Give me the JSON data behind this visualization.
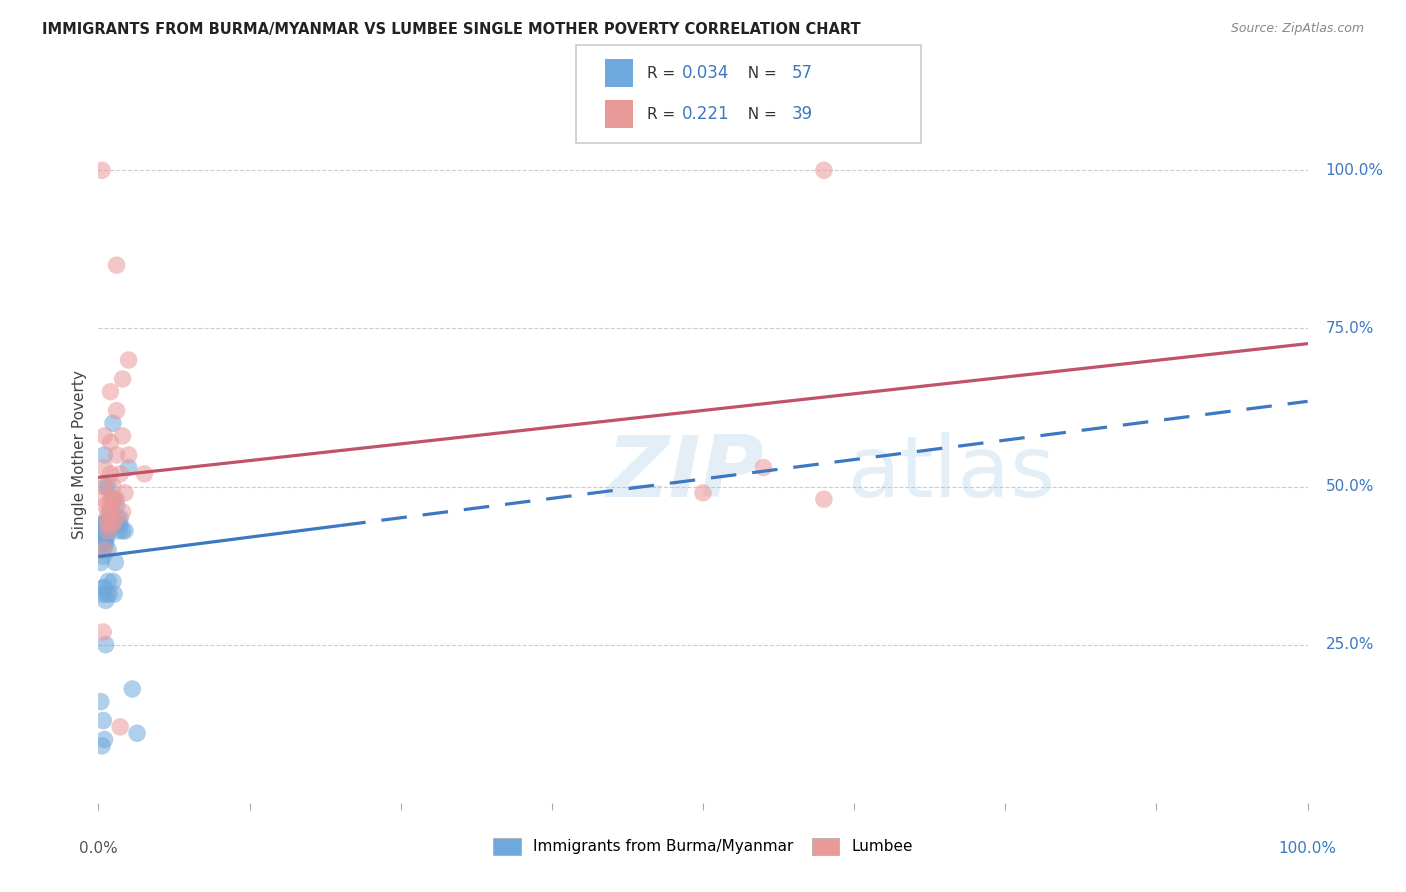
{
  "title": "IMMIGRANTS FROM BURMA/MYANMAR VS LUMBEE SINGLE MOTHER POVERTY CORRELATION CHART",
  "source": "Source: ZipAtlas.com",
  "ylabel": "Single Mother Poverty",
  "r_blue": 0.034,
  "n_blue": 57,
  "r_pink": 0.221,
  "n_pink": 39,
  "legend_label_blue": "Immigrants from Burma/Myanmar",
  "legend_label_pink": "Lumbee",
  "blue_color": "#6fa8dc",
  "pink_color": "#ea9999",
  "trend_blue_color": "#3d78c2",
  "trend_pink_color": "#c0526a",
  "grid_color": "#cccccc",
  "blue_x": [
    0.5,
    1.2,
    1.8,
    0.3,
    0.7,
    1.0,
    1.5,
    2.0,
    0.8,
    1.3,
    0.2,
    0.4,
    0.6,
    0.9,
    1.1,
    1.4,
    1.6,
    1.7,
    0.1,
    0.3,
    0.5,
    0.7,
    0.8,
    1.0,
    1.2,
    1.5,
    2.2,
    0.4,
    0.6,
    1.8,
    0.2,
    0.3,
    0.5,
    0.4,
    0.6,
    0.7,
    0.8,
    0.9,
    1.0,
    1.1,
    0.3,
    0.5,
    0.7,
    0.9,
    1.2,
    0.4,
    0.6,
    1.3,
    0.8,
    2.5,
    0.2,
    0.4,
    2.8,
    0.3,
    0.5,
    0.6,
    3.2
  ],
  "blue_y": [
    55,
    60,
    45,
    44,
    42,
    46,
    47,
    43,
    50,
    48,
    38,
    40,
    42,
    44,
    46,
    38,
    45,
    43,
    44,
    42,
    41,
    43,
    40,
    45,
    48,
    44,
    43,
    39,
    50,
    44,
    44,
    43,
    44,
    42,
    41,
    44,
    43,
    45,
    44,
    46,
    33,
    34,
    33,
    33,
    35,
    34,
    32,
    33,
    35,
    53,
    16,
    13,
    18,
    9,
    10,
    25,
    11
  ],
  "pink_x": [
    0.3,
    1.5,
    2.5,
    2.0,
    1.0,
    1.5,
    2.0,
    0.5,
    1.0,
    1.5,
    0.5,
    1.0,
    1.2,
    1.5,
    1.8,
    0.8,
    1.3,
    2.5,
    0.4,
    0.6,
    1.0,
    0.7,
    1.2,
    0.8,
    1.5,
    2.0,
    0.5,
    1.0,
    2.2,
    0.8,
    3.8,
    0.4,
    1.8,
    0.5,
    1.0,
    50.0,
    60.0,
    60.0,
    55.0
  ],
  "pink_y": [
    100,
    85,
    70,
    67,
    65,
    62,
    58,
    58,
    57,
    55,
    53,
    52,
    50,
    48,
    52,
    46,
    48,
    55,
    50,
    47,
    46,
    45,
    44,
    43,
    45,
    46,
    40,
    47,
    49,
    44,
    52,
    27,
    12,
    48,
    48,
    49,
    48,
    100,
    53
  ],
  "xlim": [
    0,
    100
  ],
  "ylim": [
    0,
    110
  ],
  "yticks": [
    0,
    25,
    50,
    75,
    100
  ],
  "xticks": [
    0,
    12.5,
    25,
    37.5,
    50,
    62.5,
    75,
    87.5,
    100
  ]
}
